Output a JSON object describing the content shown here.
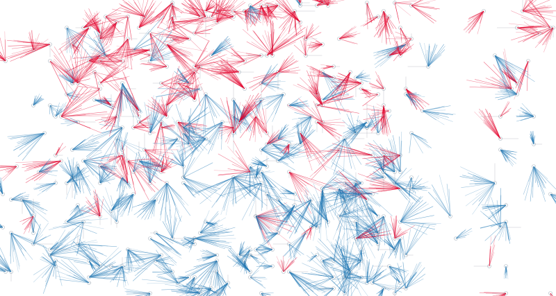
{
  "visualization": {
    "type": "flow-fan-map",
    "background": "#ffffff",
    "colors": {
      "outbound": "#e3002b",
      "inbound": "#1f77b4",
      "node_stroke": "#8a9aa8"
    },
    "node_marker": "hollow-circle",
    "lines_drawn_with_transparency": true
  }
}
